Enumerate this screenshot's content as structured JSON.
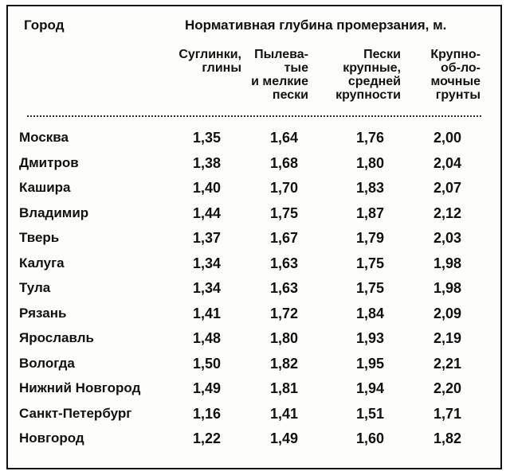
{
  "header": {
    "city": "Город",
    "group": "Нормативная глубина промерзания, м.",
    "columns": [
      "Суглинки,\nглины",
      "Пылева-\nтые\nи мелкие\nпески",
      "Пески\nкрупные,\nсредней\nкрупности",
      "Крупно-\nоб-ло-\nмочные\nгрунты"
    ]
  },
  "rows": [
    {
      "city": "Москва",
      "v": [
        "1,35",
        "1,64",
        "1,76",
        "2,00"
      ]
    },
    {
      "city": "Дмитров",
      "v": [
        "1,38",
        "1,68",
        "1,80",
        "2,04"
      ]
    },
    {
      "city": "Кашира",
      "v": [
        "1,40",
        "1,70",
        "1,83",
        "2,07"
      ]
    },
    {
      "city": "Владимир",
      "v": [
        "1,44",
        "1,75",
        "1,87",
        "2,12"
      ]
    },
    {
      "city": "Тверь",
      "v": [
        "1,37",
        "1,67",
        "1,79",
        "2,03"
      ]
    },
    {
      "city": "Калуга",
      "v": [
        "1,34",
        "1,63",
        "1,75",
        "1,98"
      ]
    },
    {
      "city": "Тула",
      "v": [
        "1,34",
        "1,63",
        "1,75",
        "1,98"
      ]
    },
    {
      "city": "Рязань",
      "v": [
        "1,41",
        "1,72",
        "1,84",
        "2,09"
      ]
    },
    {
      "city": "Ярославль",
      "v": [
        "1,48",
        "1,80",
        "1,93",
        "2,19"
      ]
    },
    {
      "city": "Вологда",
      "v": [
        "1,50",
        "1,82",
        "1,95",
        "2,21"
      ]
    },
    {
      "city": "Нижний Новгород",
      "v": [
        "1,49",
        "1,81",
        "1,94",
        "2,20"
      ]
    },
    {
      "city": "Санкт-Петербург",
      "v": [
        "1,16",
        "1,41",
        "1,51",
        "1,71"
      ]
    },
    {
      "city": "Новгород",
      "v": [
        "1,22",
        "1,49",
        "1,60",
        "1,82"
      ]
    }
  ]
}
